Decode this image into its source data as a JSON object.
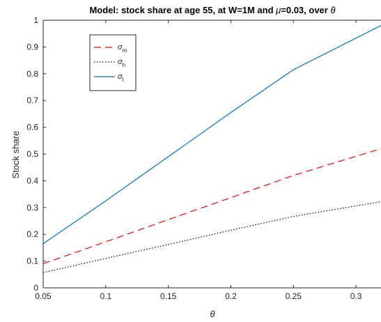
{
  "chart_data": {
    "type": "line",
    "title": {
      "prefix": "Model: stock share at age 55, at W=1M and ",
      "mu_symbol": "μ",
      "middle": "=0.03, over ",
      "theta_symbol": "θ"
    },
    "xlabel": "θ",
    "ylabel": "Stock share",
    "xlim": [
      0.05,
      0.32
    ],
    "ylim": [
      0,
      1
    ],
    "xticks": [
      0.05,
      0.1,
      0.15,
      0.2,
      0.25,
      0.3
    ],
    "xtick_labels": [
      "0.05",
      "0.1",
      "0.15",
      "0.2",
      "0.25",
      "0.3"
    ],
    "yticks": [
      0,
      0.1,
      0.2,
      0.3,
      0.4,
      0.5,
      0.6,
      0.7,
      0.8,
      0.9,
      1
    ],
    "ytick_labels": [
      "0",
      "0.1",
      "0.2",
      "0.3",
      "0.4",
      "0.5",
      "0.6",
      "0.7",
      "0.8",
      "0.9",
      "1"
    ],
    "grid": false,
    "legend_position": "top-left",
    "series": [
      {
        "name": "σ",
        "subscript": "m",
        "color": "#ff0000",
        "style": "dashed",
        "x": [
          0.05,
          0.1,
          0.15,
          0.2,
          0.25,
          0.32
        ],
        "y": [
          0.09,
          0.172,
          0.255,
          0.337,
          0.42,
          0.52
        ]
      },
      {
        "name": "σ",
        "subscript": "h",
        "color": "#000000",
        "style": "dotted",
        "x": [
          0.05,
          0.1,
          0.15,
          0.2,
          0.25,
          0.32
        ],
        "y": [
          0.057,
          0.11,
          0.162,
          0.215,
          0.267,
          0.322
        ]
      },
      {
        "name": "σ",
        "subscript": "l",
        "color": "#0072bd",
        "style": "solid",
        "x": [
          0.05,
          0.1,
          0.15,
          0.2,
          0.25,
          0.32
        ],
        "y": [
          0.165,
          0.325,
          0.49,
          0.655,
          0.815,
          0.98
        ]
      }
    ]
  }
}
